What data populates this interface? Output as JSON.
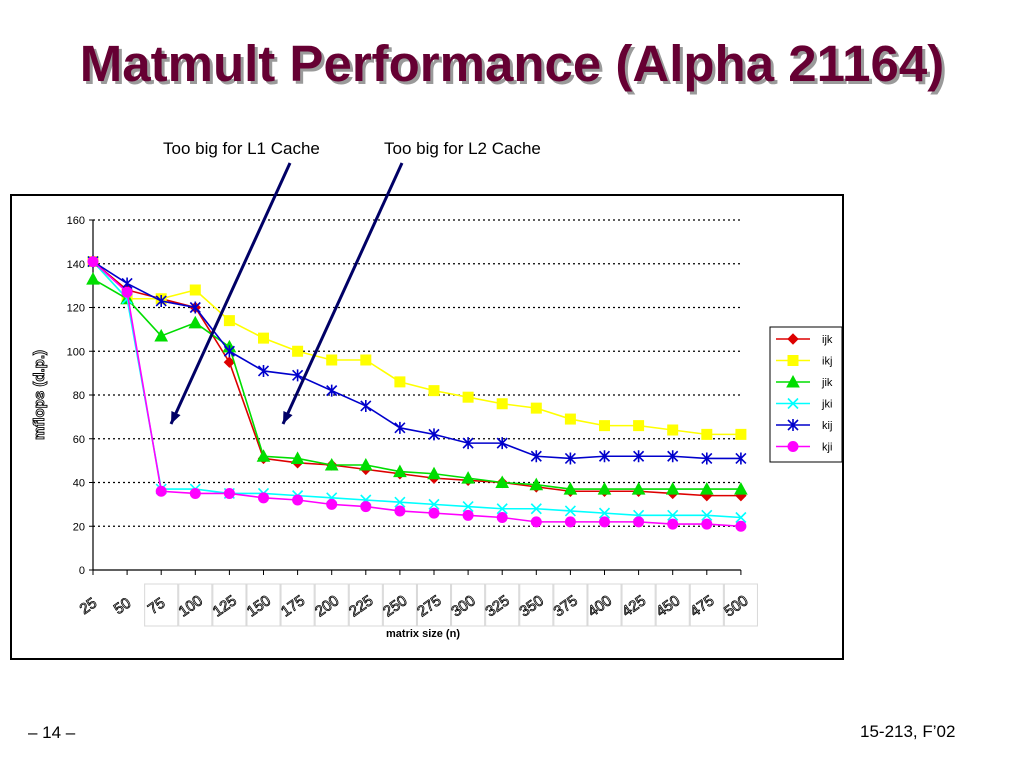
{
  "slide": {
    "title": "Matmult Performance (Alpha 21164)",
    "annotations": [
      "Too big for L1 Cache",
      "Too big for L2 Cache"
    ],
    "page_number": "– 14 –",
    "course": "15-213, F’02"
  },
  "chart_data": {
    "type": "line",
    "title": "",
    "xlabel": "matrix size (n)",
    "ylabel": "mflops (d.p.)",
    "ylim": [
      0,
      160
    ],
    "yticks": [
      0,
      20,
      40,
      60,
      80,
      100,
      120,
      140,
      160
    ],
    "grid": "horizontal dotted",
    "legend": "right",
    "categories": [
      "25",
      "50",
      "75",
      "100",
      "125",
      "150",
      "175",
      "200",
      "225",
      "250",
      "275",
      "300",
      "325",
      "350",
      "375",
      "400",
      "425",
      "450",
      "475",
      "500"
    ],
    "series": [
      {
        "name": "ijk",
        "color": "#dd0000",
        "marker": "diamond",
        "values": [
          141,
          128,
          null,
          120,
          95,
          51,
          49,
          48,
          46,
          44,
          42,
          41,
          40,
          38,
          36,
          36,
          36,
          35,
          34,
          34
        ]
      },
      {
        "name": "ikj",
        "color": "#ffff00",
        "marker": "square",
        "values": [
          141,
          124,
          124,
          128,
          114,
          106,
          100,
          96,
          96,
          86,
          82,
          79,
          76,
          74,
          69,
          66,
          66,
          64,
          62,
          62
        ]
      },
      {
        "name": "jik",
        "color": "#00dd00",
        "marker": "triangle",
        "values": [
          133,
          124,
          107,
          113,
          102,
          52,
          51,
          48,
          48,
          45,
          44,
          42,
          40,
          39,
          37,
          37,
          37,
          37,
          37,
          37
        ]
      },
      {
        "name": "jki",
        "color": "#00ffff",
        "marker": "x",
        "values": [
          141,
          124,
          37,
          37,
          35,
          35,
          34,
          33,
          32,
          31,
          30,
          29,
          28,
          28,
          27,
          26,
          25,
          25,
          25,
          24
        ]
      },
      {
        "name": "kij",
        "color": "#0000cc",
        "marker": "star",
        "values": [
          141,
          131,
          123,
          120,
          100,
          91,
          89,
          82,
          75,
          65,
          62,
          58,
          58,
          52,
          51,
          52,
          52,
          52,
          51,
          51
        ]
      },
      {
        "name": "kji",
        "color": "#ff00ff",
        "marker": "circle",
        "values": [
          141,
          127,
          36,
          35,
          35,
          33,
          32,
          30,
          29,
          27,
          26,
          25,
          24,
          22,
          22,
          22,
          22,
          21,
          21,
          20
        ]
      }
    ]
  }
}
